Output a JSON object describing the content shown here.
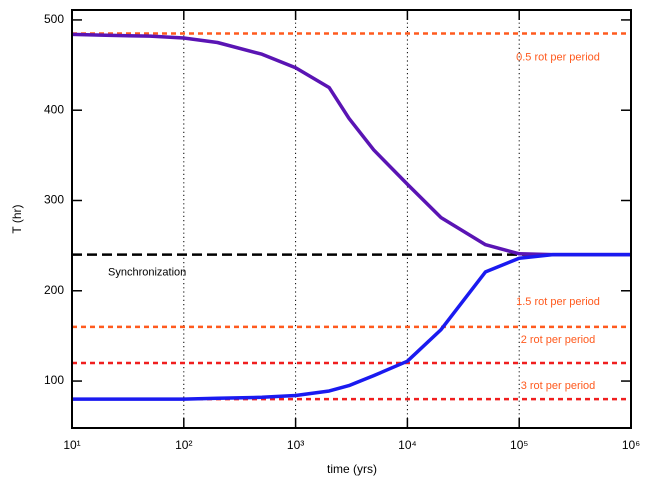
{
  "chart_data": {
    "type": "line",
    "xlabel": "time (yrs)",
    "ylabel": "T (hr)",
    "xscale": "log",
    "xlim": [
      10,
      1000000
    ],
    "xticks": [
      {
        "value": 10,
        "label": "10¹"
      },
      {
        "value": 100,
        "label": "10²"
      },
      {
        "value": 1000,
        "label": "10³"
      },
      {
        "value": 10000,
        "label": "10⁴"
      },
      {
        "value": 100000,
        "label": "10⁵"
      },
      {
        "value": 1000000,
        "label": "10⁶"
      }
    ],
    "ylim": [
      48,
      511
    ],
    "yticks": [
      100,
      200,
      300,
      400,
      500
    ],
    "x": [
      10,
      20,
      50,
      100,
      200,
      500,
      1000,
      2000,
      3000,
      5000,
      10000,
      20000,
      50000,
      100000,
      200000,
      1000000
    ],
    "series": [
      {
        "color": "#5a14b4",
        "values": [
          484,
          483,
          482,
          480,
          475,
          462,
          447,
          425,
          391,
          356,
          318,
          281,
          251,
          241,
          240,
          240
        ]
      },
      {
        "color": "#1a1af0",
        "values": [
          80,
          80,
          80,
          80,
          81,
          82,
          84,
          89,
          95,
          106,
          122,
          157,
          221,
          236,
          240,
          240
        ]
      }
    ],
    "hlines": [
      {
        "y": 485,
        "color": "#ff5a1e",
        "label": "0.5 rot per period"
      },
      {
        "y": 240,
        "color": "#000000",
        "label": "Synchronization"
      },
      {
        "y": 160,
        "color": "#ff5a1e",
        "label": "1.5 rot per period"
      },
      {
        "y": 120,
        "color": "#f01e1e",
        "label": "2 rot per period"
      },
      {
        "y": 80,
        "color": "#f01e1e",
        "label": "3 rot per period"
      }
    ],
    "vlines": [
      100,
      1000,
      10000,
      100000
    ]
  }
}
